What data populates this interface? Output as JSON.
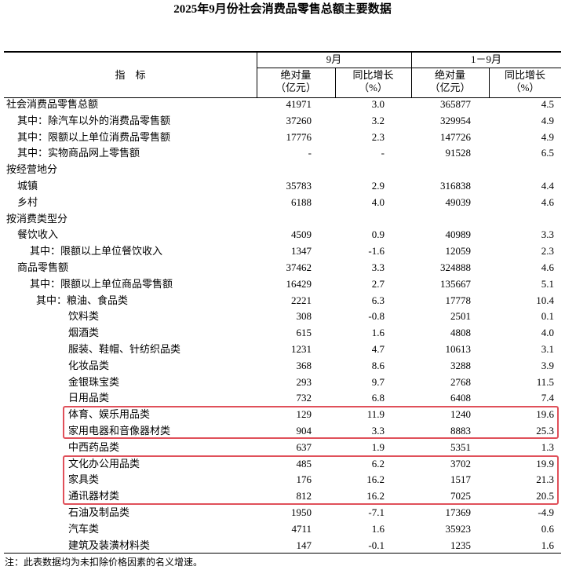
{
  "header": {
    "title": "2025年9月份社会消费品零售总额主要数据",
    "item": "指　标",
    "groups": [
      "9月",
      "1－9月"
    ],
    "columns": [
      [
        "绝对量",
        "（亿元）"
      ],
      [
        "同比增长",
        "（%）"
      ],
      [
        "绝对量",
        "（亿元）"
      ],
      [
        "同比增长",
        "（%）"
      ]
    ]
  },
  "table": {
    "rows": [
      [
        "社会消费品零售总额",
        "41971",
        "3.0",
        "365877",
        "4.5"
      ],
      [
        "其中：除汽车以外的消费品零售额",
        "37260",
        "3.2",
        "329954",
        "4.9"
      ],
      [
        "其中：限额以上单位消费品零售额",
        "17776",
        "2.3",
        "147726",
        "4.9"
      ],
      [
        "其中：实物商品网上零售额",
        "-",
        "-",
        "91528",
        "6.5"
      ],
      [
        "按经营地分"
      ],
      [
        "城镇",
        "35783",
        "2.9",
        "316838",
        "4.4"
      ],
      [
        "乡村",
        "6188",
        "4.0",
        "49039",
        "4.6"
      ],
      [
        "按消费类型分"
      ],
      [
        "餐饮收入",
        "4509",
        "0.9",
        "40989",
        "3.3"
      ],
      [
        "其中：限额以上单位餐饮收入",
        "1347",
        "-1.6",
        "12059",
        "2.3"
      ],
      [
        "商品零售额",
        "37462",
        "3.3",
        "324888",
        "4.6"
      ],
      [
        "其中：限额以上单位商品零售额",
        "16429",
        "2.7",
        "135667",
        "5.1"
      ],
      [
        "其中：粮油、食品类",
        "2221",
        "6.3",
        "17778",
        "10.4"
      ],
      [
        "饮料类",
        "308",
        "-0.8",
        "2501",
        "0.1"
      ],
      [
        "烟酒类",
        "615",
        "1.6",
        "4808",
        "4.0"
      ],
      [
        "服装、鞋帽、针纺织品类",
        "1231",
        "4.7",
        "10613",
        "3.1"
      ],
      [
        "化妆品类",
        "368",
        "8.6",
        "3288",
        "3.9"
      ],
      [
        "金银珠宝类",
        "293",
        "9.7",
        "2768",
        "11.5"
      ],
      [
        "日用品类",
        "732",
        "6.8",
        "6408",
        "7.4"
      ],
      [
        "体育、娱乐用品类",
        "129",
        "11.9",
        "1240",
        "19.6"
      ],
      [
        "家用电器和音像器材类",
        "904",
        "3.3",
        "8883",
        "25.3"
      ],
      [
        "中西药品类",
        "637",
        "1.9",
        "5351",
        "1.3"
      ],
      [
        "文化办公用品类",
        "485",
        "6.2",
        "3702",
        "19.9"
      ],
      [
        "家具类",
        "176",
        "16.2",
        "1517",
        "21.3"
      ],
      [
        "通讯器材类",
        "812",
        "16.2",
        "7025",
        "20.5"
      ],
      [
        "石油及制品类",
        "1950",
        "-7.1",
        "17369",
        "-4.9"
      ],
      [
        "汽车类",
        "4711",
        "1.6",
        "35923",
        "0.6"
      ],
      [
        "建筑及装潢材料类",
        "147",
        "-0.1",
        "1235",
        "1.6"
      ]
    ]
  },
  "note": "注：此表数据均为未扣除价格因素的名义增速。"
}
